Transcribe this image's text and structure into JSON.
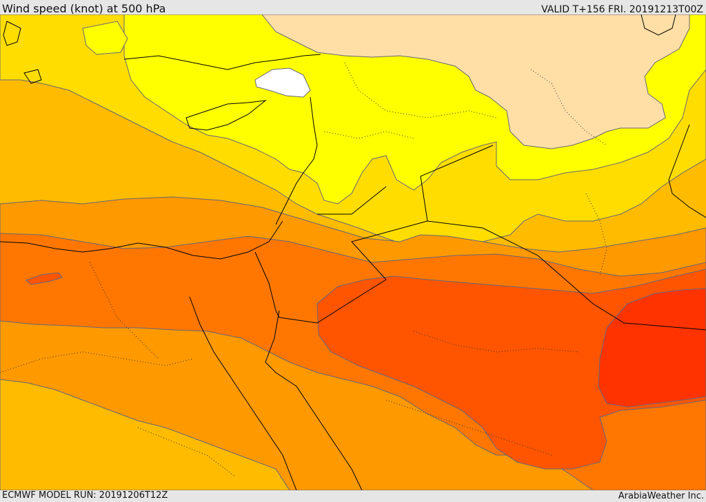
{
  "header": {
    "title": "Wind speed (knot) at 500 hPa",
    "valid": "VALID T+156 FRI. 20191213T00Z"
  },
  "footer": {
    "model_run": "ECMWF MODEL RUN: 20191206T12Z",
    "credit": "ArabiaWeather Inc."
  },
  "map": {
    "field": "wind-speed-500hPa",
    "colors": {
      "lightest": "#ffdfa6",
      "yellow": "#ffff00",
      "gold": "#ffdd00",
      "light_orange": "#ffbb00",
      "orange": "#ff9900",
      "dark_orange": "#ff7700",
      "red_orange": "#ff5500",
      "deep_red": "#ff3300",
      "calm_white": "#ffffff",
      "contour_line": "#66667a",
      "coastline": "#000000"
    }
  }
}
